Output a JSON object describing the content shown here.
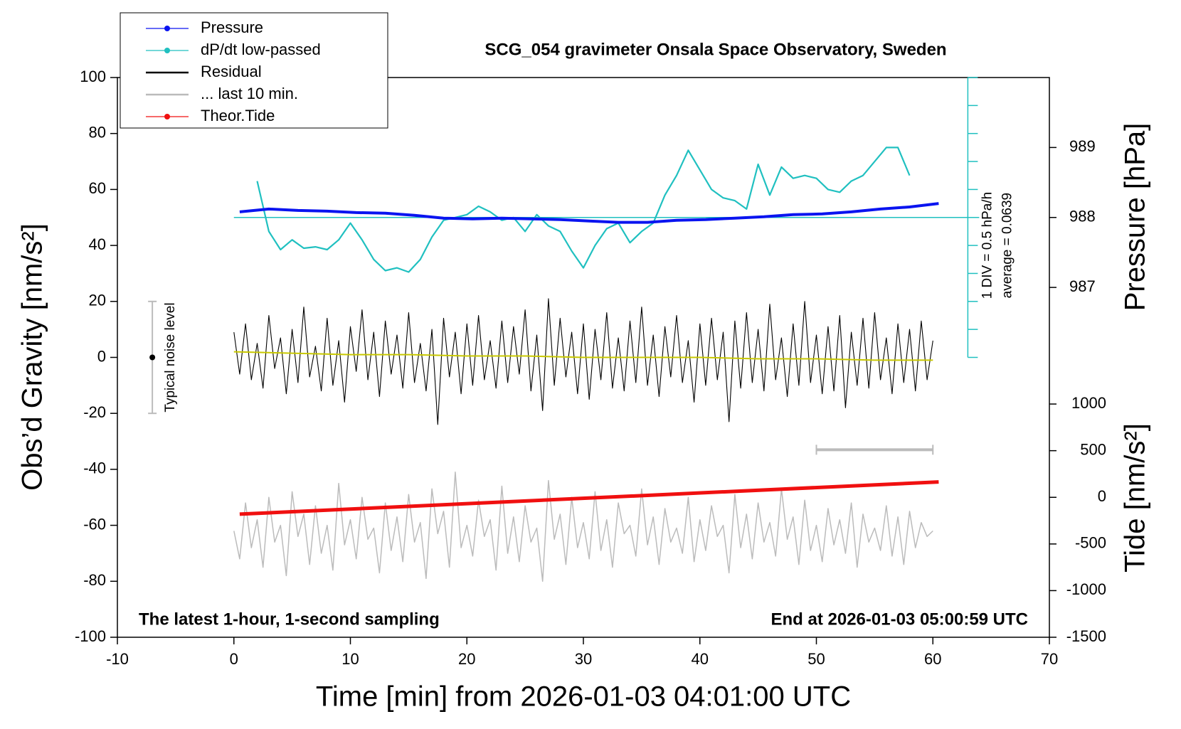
{
  "chart_data": {
    "type": "line",
    "title": "SCG_054 gravimeter Onsala Space Observatory, Sweden",
    "x_label": "Time [min] from 2026-01-03 04:01:00 UTC",
    "y_label": "Obs’d Gravity [nm/s²]",
    "y2_label": "Pressure [hPa]",
    "y3_label": "Tide [nm/s²]",
    "xlim": [
      -10,
      70
    ],
    "xticks": [
      -10,
      0,
      10,
      20,
      30,
      40,
      50,
      60,
      70
    ],
    "ylim": [
      -100,
      100
    ],
    "yticks": [
      -100,
      -80,
      -60,
      -40,
      -20,
      0,
      20,
      40,
      60,
      80,
      100
    ],
    "y2lim": [
      982,
      990
    ],
    "y2ticks": [
      987,
      988,
      989
    ],
    "y3lim": [
      -1500,
      4500
    ],
    "y3ticks": [
      -1500,
      -1000,
      -500,
      0,
      500,
      1000
    ],
    "annotations": [
      "The latest 1-hour, 1-second sampling",
      "End at 2026-01-03 05:00:59 UTC"
    ],
    "dpdt_axis": {
      "x": 63,
      "ylim": [
        0,
        100
      ],
      "ticks": [
        0,
        10,
        20,
        30,
        40,
        50,
        60,
        70,
        80,
        90,
        100
      ],
      "reference": 50,
      "div_label": "1 DIV = 0.5 hPa/h",
      "average_label": "average = 0.0639",
      "color": "#20c0c0"
    },
    "noise_bar": {
      "x": -7,
      "low": -20,
      "high": 20,
      "center": 0,
      "label": "Typical noise level"
    },
    "last10_bar": {
      "x": [
        50,
        60
      ],
      "y": -33
    },
    "x": [
      0,
      0.5,
      1,
      1.5,
      2,
      2.5,
      3,
      3.5,
      4,
      4.5,
      5,
      5.5,
      6,
      6.5,
      7,
      7.5,
      8,
      8.5,
      9,
      9.5,
      10,
      10.5,
      11,
      11.5,
      12,
      12.5,
      13,
      13.5,
      14,
      14.5,
      15,
      15.5,
      16,
      16.5,
      17,
      17.5,
      18,
      18.5,
      19,
      19.5,
      20,
      20.5,
      21,
      21.5,
      22,
      22.5,
      23,
      23.5,
      24,
      24.5,
      25,
      25.5,
      26,
      26.5,
      27,
      27.5,
      28,
      28.5,
      29,
      29.5,
      30,
      30.5,
      31,
      31.5,
      32,
      32.5,
      33,
      33.5,
      34,
      34.5,
      35,
      35.5,
      36,
      36.5,
      37,
      37.5,
      38,
      38.5,
      39,
      39.5,
      40,
      40.5,
      41,
      41.5,
      42,
      42.5,
      43,
      43.5,
      44,
      44.5,
      45,
      45.5,
      46,
      46.5,
      47,
      47.5,
      48,
      48.5,
      49,
      49.5,
      50,
      50.5,
      51,
      51.5,
      52,
      52.5,
      53,
      53.5,
      54,
      54.5,
      55,
      55.5,
      56,
      56.5,
      57,
      57.5,
      58,
      58.5,
      59,
      59.5,
      60
    ],
    "series": [
      {
        "name": "Pressure",
        "color": "#0a14f0",
        "marker": true,
        "axis": "y2",
        "x": [
          0.5,
          3,
          5.5,
          8,
          10.5,
          13,
          15.5,
          18,
          20.5,
          23,
          25.5,
          28,
          30.5,
          33,
          35.5,
          38,
          40.5,
          43,
          45.5,
          48,
          50.5,
          53,
          55.5,
          58,
          60.5
        ],
        "values": [
          988.08,
          988.12,
          988.1,
          988.09,
          988.07,
          988.06,
          988.03,
          987.99,
          987.98,
          987.99,
          987.98,
          987.97,
          987.95,
          987.93,
          987.93,
          987.96,
          987.97,
          987.99,
          988.01,
          988.04,
          988.05,
          988.08,
          988.12,
          988.15,
          988.2
        ]
      },
      {
        "name": "dP/dt low-passed",
        "color": "#20c0c0",
        "marker": true,
        "x": [
          2,
          3,
          4,
          5,
          6,
          7,
          8,
          9,
          10,
          11,
          12,
          13,
          14,
          15,
          16,
          17,
          18,
          19,
          20,
          21,
          22,
          23,
          24,
          25,
          26,
          27,
          28,
          29,
          30,
          31,
          32,
          33,
          34,
          35,
          36,
          37,
          38,
          39,
          40,
          41,
          42,
          43,
          44,
          45,
          46,
          47,
          48,
          49,
          50,
          51,
          52,
          53,
          54,
          55,
          56,
          57,
          58
        ],
        "values": [
          63,
          45,
          38.5,
          42,
          39,
          39.5,
          38.5,
          42,
          48,
          42,
          35,
          31,
          32,
          30.5,
          35,
          43,
          49,
          50,
          51,
          54,
          52,
          49,
          50,
          45,
          51,
          47,
          45,
          38,
          32,
          40,
          46,
          48,
          41,
          45,
          48,
          58,
          65,
          74,
          67,
          60,
          57,
          56,
          53,
          69,
          58,
          68,
          64,
          65,
          64,
          60,
          59,
          63,
          65,
          70,
          75,
          75,
          65
        ]
      },
      {
        "name": "Residual",
        "color": "#000000",
        "marker": false,
        "values": [
          9,
          -6,
          12,
          -8,
          5,
          -11,
          15,
          -4,
          7,
          -13,
          10,
          -9,
          18,
          -7,
          4,
          -12,
          14,
          -10,
          6,
          -16,
          11,
          -5,
          17,
          -8,
          9,
          -14,
          13,
          -6,
          8,
          -11,
          16,
          -9,
          5,
          -12,
          10,
          -24,
          14,
          -7,
          9,
          -13,
          12,
          -10,
          15,
          -8,
          6,
          -11,
          13,
          -9,
          11,
          -6,
          17,
          -12,
          8,
          -19,
          21,
          -10,
          14,
          -7,
          9,
          -13,
          12,
          -15,
          10,
          -8,
          16,
          -11,
          7,
          -12,
          13,
          -9,
          18,
          -10,
          8,
          -14,
          11,
          -7,
          15,
          -9,
          6,
          -16,
          12,
          -10,
          14,
          -8,
          9,
          -23,
          13,
          -11,
          16,
          -9,
          10,
          -12,
          19,
          -8,
          7,
          -14,
          12,
          -10,
          20,
          -9,
          8,
          -13,
          11,
          -12,
          15,
          -18,
          9,
          -10,
          14,
          -11,
          16,
          -8,
          7,
          -13,
          12,
          -9,
          10,
          -12,
          13,
          -8,
          6
        ]
      },
      {
        "name": "... last 10 min.",
        "color": "#bbbbbb",
        "marker": false,
        "values": [
          -62,
          -72,
          -52,
          -68,
          -58,
          -75,
          -50,
          -66,
          -60,
          -78,
          -48,
          -64,
          -56,
          -74,
          -53,
          -70,
          -60,
          -76,
          -45,
          -67,
          -58,
          -72,
          -50,
          -65,
          -61,
          -77,
          -52,
          -69,
          -57,
          -73,
          -49,
          -66,
          -59,
          -79,
          -47,
          -63,
          -55,
          -75,
          -41,
          -68,
          -60,
          -71,
          -51,
          -64,
          -58,
          -76,
          -46,
          -70,
          -57,
          -73,
          -53,
          -66,
          -61,
          -80,
          -44,
          -65,
          -56,
          -74,
          -50,
          -68,
          -59,
          -72,
          -48,
          -69,
          -58,
          -75,
          -52,
          -63,
          -60,
          -71,
          -47,
          -67,
          -57,
          -74,
          -54,
          -66,
          -61,
          -70,
          -50,
          -73,
          -58,
          -69,
          -53,
          -64,
          -60,
          -77,
          -49,
          -68,
          -56,
          -72,
          -52,
          -66,
          -59,
          -71,
          -47,
          -65,
          -57,
          -74,
          -51,
          -69,
          -60,
          -73,
          -54,
          -67,
          -58,
          -70,
          -52,
          -75,
          -56,
          -66,
          -61,
          -69,
          -53,
          -71,
          -57,
          -74,
          -55,
          -68,
          -59,
          -64,
          -62
        ]
      },
      {
        "name": "Theor.Tide",
        "color": "#f01010",
        "marker": true,
        "axis": "y3",
        "x": [
          0.5,
          60.5
        ],
        "values": [
          -180,
          165
        ]
      }
    ],
    "smoothed": {
      "color": "#c8c800",
      "x": [
        0,
        5,
        10,
        15,
        20,
        25,
        30,
        35,
        40,
        45,
        50,
        55,
        60
      ],
      "values": [
        2,
        1.5,
        1,
        1,
        0.5,
        0.5,
        0,
        0,
        0,
        -0.5,
        -0.5,
        -1,
        -1
      ]
    }
  }
}
